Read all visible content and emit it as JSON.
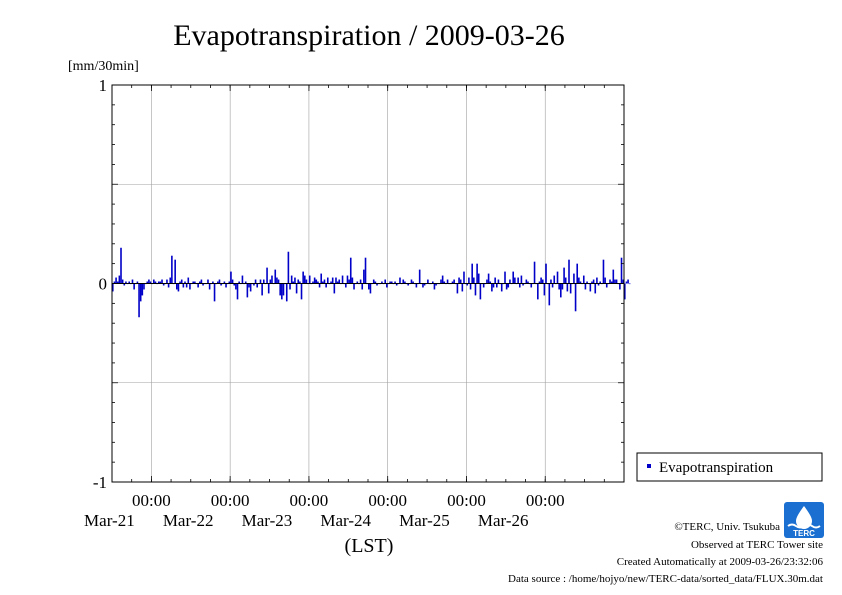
{
  "chart_data": {
    "type": "bar",
    "title": "Evapotranspiration / 2009-03-26",
    "ylabel": "[mm/30min]",
    "xlabel": "(LST)",
    "ylim": [
      -1,
      1
    ],
    "yticks": [
      "1",
      "0",
      "-1"
    ],
    "xticks": [
      {
        "time": "00:00",
        "date": "Mar-21"
      },
      {
        "time": "00:00",
        "date": "Mar-22"
      },
      {
        "time": "00:00",
        "date": "Mar-23"
      },
      {
        "time": "00:00",
        "date": "Mar-24"
      },
      {
        "time": "00:00",
        "date": "Mar-25"
      },
      {
        "time": "00:00",
        "date": "Mar-26"
      }
    ],
    "x_start": "2009-03-20 12:00",
    "x_end": "2009-03-26 24:00",
    "interval_minutes": 30,
    "grid": true,
    "legend": "right",
    "series": [
      {
        "name": "Evapotranspiration",
        "color": "#0000c8",
        "values": [
          -0.04,
          0.01,
          0.03,
          0.01,
          0.04,
          0.18,
          0.02,
          -0.01,
          0.01,
          0.0,
          0.01,
          0.0,
          0.02,
          -0.03,
          0.0,
          0.01,
          -0.17,
          -0.09,
          -0.06,
          -0.03,
          0.0,
          0.01,
          0.02,
          0.01,
          0.0,
          0.02,
          0.01,
          0.0,
          0.01,
          0.01,
          0.02,
          -0.01,
          0.0,
          0.02,
          -0.02,
          0.03,
          0.14,
          0.0,
          0.12,
          -0.03,
          -0.04,
          0.01,
          0.02,
          -0.02,
          0.01,
          -0.02,
          0.03,
          -0.03,
          0.0,
          0.01,
          0.01,
          0.0,
          -0.02,
          0.01,
          0.02,
          -0.01,
          0.0,
          0.0,
          0.02,
          -0.03,
          0.0,
          0.01,
          -0.09,
          0.0,
          0.01,
          0.02,
          -0.01,
          0.0,
          0.01,
          -0.02,
          0.0,
          0.01,
          0.06,
          0.02,
          -0.01,
          -0.03,
          -0.08,
          0.01,
          0.0,
          0.04,
          0.0,
          0.01,
          -0.07,
          -0.02,
          -0.04,
          0.0,
          -0.01,
          0.02,
          -0.02,
          0.0,
          0.02,
          -0.06,
          0.02,
          0.0,
          0.08,
          -0.05,
          0.02,
          0.04,
          0.0,
          0.07,
          0.03,
          0.02,
          -0.06,
          -0.08,
          -0.06,
          0.0,
          -0.09,
          0.16,
          -0.03,
          0.04,
          0.01,
          0.03,
          -0.05,
          0.02,
          0.01,
          -0.08,
          0.06,
          0.04,
          0.02,
          0.0,
          0.04,
          0.0,
          0.01,
          0.03,
          0.02,
          0.01,
          -0.02,
          0.05,
          0.01,
          0.02,
          -0.02,
          0.03,
          0.0,
          0.01,
          0.03,
          -0.05,
          0.03,
          0.01,
          0.02,
          0.0,
          0.04,
          0.0,
          -0.02,
          0.04,
          0.02,
          0.13,
          0.03,
          -0.03,
          0.0,
          0.01,
          0.0,
          0.02,
          -0.03,
          0.07,
          0.13,
          0.0,
          -0.03,
          -0.05,
          0.0,
          0.02,
          0.01,
          -0.01,
          0.0,
          0.0,
          0.01,
          0.0,
          0.02,
          -0.02,
          0.0,
          0.01,
          0.01,
          0.0,
          0.01,
          -0.01,
          0.0,
          0.03,
          0.0,
          0.02,
          0.01,
          0.0,
          -0.01,
          0.0,
          0.02,
          0.01,
          0.0,
          -0.02,
          0.0,
          0.07,
          0.0,
          -0.02,
          -0.01,
          0.0,
          0.02,
          0.0,
          0.0,
          0.01,
          -0.03,
          -0.01,
          0.0,
          0.0,
          0.02,
          0.04,
          0.01,
          0.0,
          0.02,
          0.0,
          0.0,
          0.01,
          0.02,
          0.0,
          -0.05,
          0.03,
          0.02,
          -0.04,
          0.06,
          0.0,
          -0.01,
          0.03,
          -0.03,
          0.1,
          0.03,
          -0.06,
          0.1,
          0.05,
          -0.08,
          0.0,
          -0.02,
          0.0,
          0.02,
          0.05,
          0.01,
          -0.04,
          -0.02,
          0.03,
          -0.02,
          0.02,
          0.0,
          -0.04,
          0.0,
          0.06,
          -0.03,
          -0.02,
          0.02,
          0.0,
          0.06,
          0.03,
          0.0,
          0.03,
          -0.02,
          0.04,
          -0.01,
          0.0,
          0.02,
          0.01,
          0.0,
          -0.02,
          0.0,
          0.11,
          0.0,
          -0.08,
          0.01,
          0.03,
          0.02,
          -0.06,
          0.1,
          0.0,
          -0.11,
          0.02,
          -0.02,
          0.04,
          0.0,
          0.06,
          -0.03,
          -0.07,
          -0.03,
          0.08,
          0.03,
          -0.04,
          0.12,
          -0.05,
          0.0,
          0.05,
          -0.14,
          0.1,
          0.03,
          0.01,
          0.0,
          0.04,
          -0.03,
          0.01,
          0.0,
          -0.04,
          0.01,
          0.02,
          -0.05,
          0.03,
          -0.01,
          0.01,
          0.0,
          0.12,
          0.03,
          -0.02,
          0.0,
          0.02,
          0.01,
          0.07,
          0.02,
          0.02,
          0.0,
          -0.03,
          0.13,
          0.02,
          -0.08,
          0.01,
          0.02,
          0.0
        ]
      }
    ]
  },
  "footer": {
    "copyright": "©TERC, Univ. Tsukuba",
    "observed": "Observed at TERC Tower site",
    "created": "Created Automatically at 2009-03-26/23:32:06",
    "source": "Data source : /home/hojyo/new/TERC-data/sorted_data/FLUX.30m.dat",
    "logo_text": "TERC"
  }
}
